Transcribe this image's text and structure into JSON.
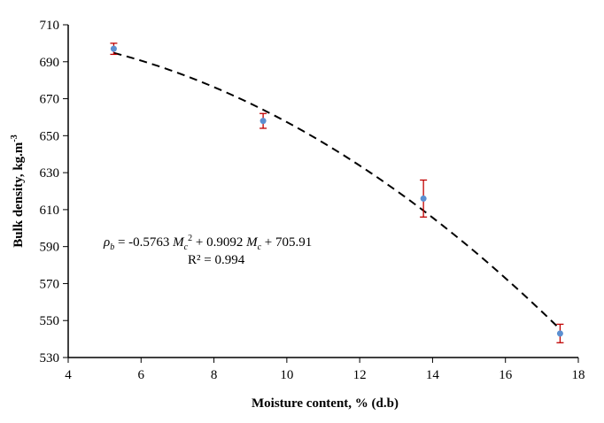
{
  "chart_data": {
    "type": "scatter",
    "xlabel": "Moisture content, % (d.b)",
    "ylabel": "Bulk density, kg.m",
    "ylabel_sup": "-3",
    "xlim": [
      4,
      18
    ],
    "ylim": [
      530,
      710
    ],
    "xticks": [
      4,
      6,
      8,
      10,
      12,
      14,
      16,
      18
    ],
    "yticks": [
      530,
      550,
      570,
      590,
      610,
      630,
      650,
      670,
      690,
      710
    ],
    "grid": false,
    "legend": "none",
    "points": [
      {
        "x": 5.25,
        "y": 697,
        "err": 3
      },
      {
        "x": 9.35,
        "y": 658,
        "err": 4
      },
      {
        "x": 13.75,
        "y": 616,
        "err": 10
      },
      {
        "x": 17.5,
        "y": 543,
        "err": 5
      }
    ],
    "trendline": {
      "type": "poly2",
      "a": -0.5763,
      "b": 0.9092,
      "c": 705.91,
      "x_range": [
        5.25,
        17.5
      ],
      "style": "dashed"
    },
    "annotation": {
      "rho": "ρ",
      "rho_sub": "b",
      "part1": " = -0.5763 ",
      "mc1": "M",
      "mc1_sub": "c",
      "mc1_sup": "2",
      "part2": " + 0.9092 ",
      "mc2": "M",
      "mc2_sub": "c",
      "part3": " + 705.91",
      "r2": "R² = 0.994"
    },
    "colors": {
      "point": "#5b8fd1",
      "error_bar": "#c00000",
      "trendline": "#000000",
      "axis": "#000000"
    }
  }
}
